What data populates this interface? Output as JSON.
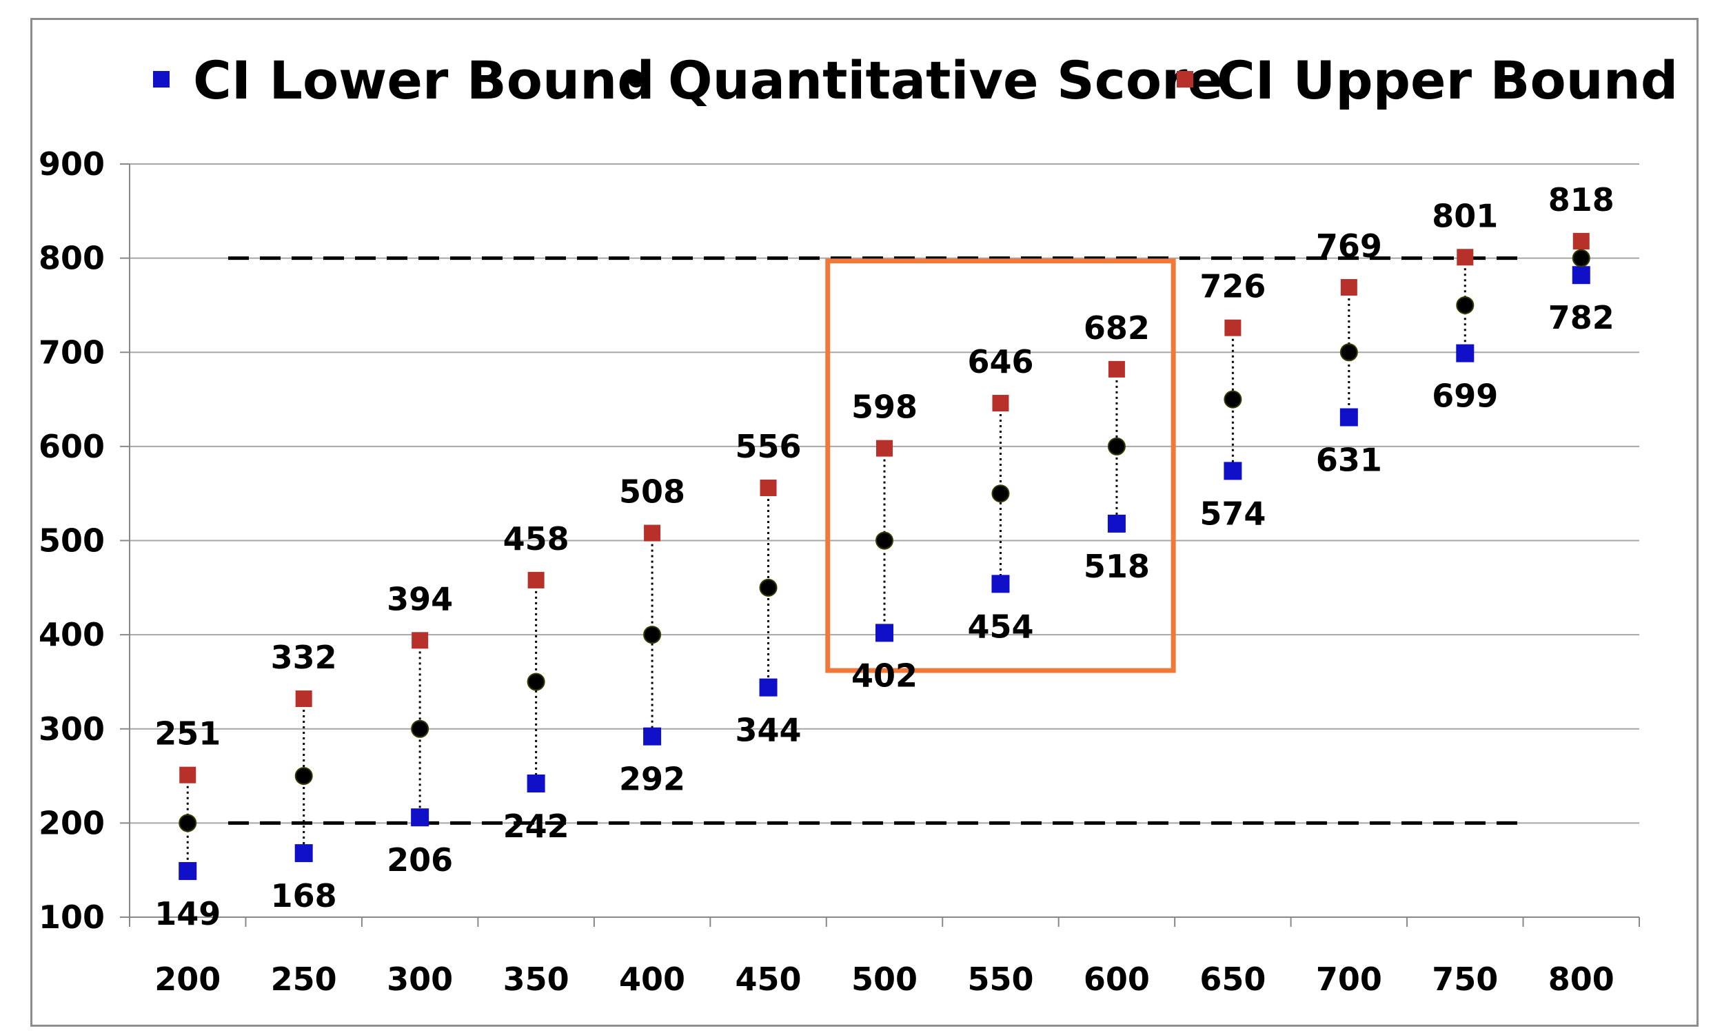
{
  "chart_data": {
    "type": "scatter",
    "title": "",
    "xlabel": "",
    "ylabel": "",
    "legend": {
      "position": "top"
    },
    "grid": true,
    "xlim": [
      175,
      825
    ],
    "ylim": [
      100,
      900
    ],
    "x_ticks": [
      "200",
      "250",
      "300",
      "350",
      "400",
      "450",
      "500",
      "550",
      "600",
      "650",
      "700",
      "750",
      "800"
    ],
    "y_ticks": [
      "100",
      "200",
      "300",
      "400",
      "500",
      "600",
      "700",
      "800",
      "900"
    ],
    "x": [
      200,
      250,
      300,
      350,
      400,
      450,
      500,
      550,
      600,
      650,
      700,
      750,
      800
    ],
    "series": [
      {
        "name": "CI Lower Bound",
        "color": "#1010c8",
        "marker": "square",
        "values": [
          149,
          168,
          206,
          242,
          292,
          344,
          402,
          454,
          518,
          574,
          631,
          699,
          782
        ]
      },
      {
        "name": "Quantitative Score",
        "color": "#000000",
        "marker": "circle",
        "values": [
          200,
          250,
          300,
          350,
          400,
          450,
          500,
          550,
          600,
          650,
          700,
          750,
          800
        ]
      },
      {
        "name": "CI Upper Bound",
        "color": "#b8302a",
        "marker": "square",
        "values": [
          251,
          332,
          394,
          458,
          508,
          556,
          598,
          646,
          682,
          726,
          769,
          801,
          818
        ]
      }
    ],
    "reference_lines": [
      {
        "y": 800,
        "style": "dashed"
      },
      {
        "y": 200,
        "style": "dashed"
      }
    ],
    "highlight_box": {
      "x_range": [
        500,
        600
      ],
      "color": "#f0793a"
    }
  }
}
